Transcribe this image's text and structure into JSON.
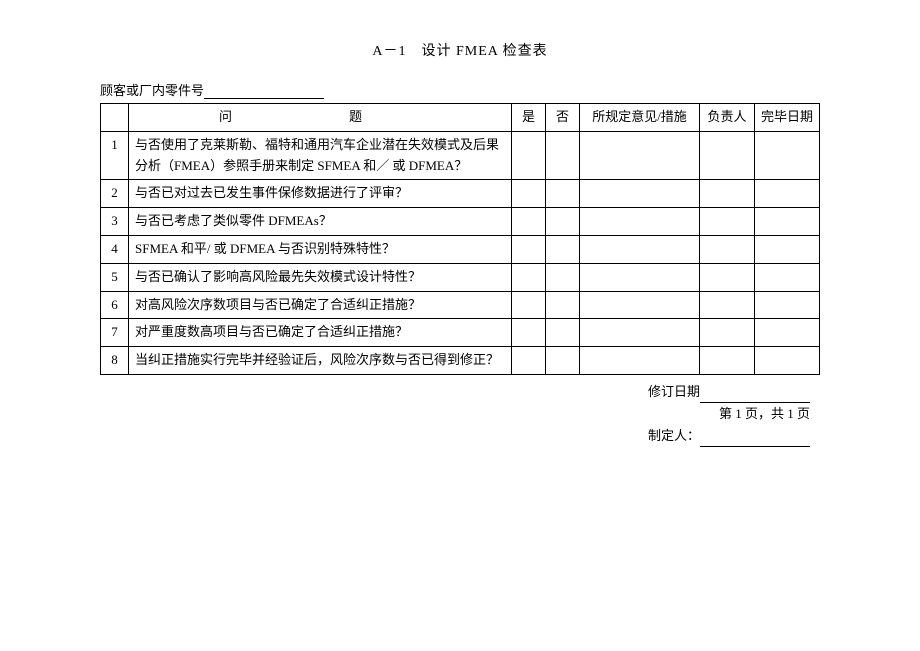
{
  "title": "A－1　设计 FMEA 检查表",
  "subtitle_label": "顾客或厂内零件号",
  "headers": {
    "num": "",
    "question_left": "问",
    "question_right": "题",
    "yes": "是",
    "no": "否",
    "action": "所规定意见/措施",
    "owner": "负责人",
    "date": "完毕日期"
  },
  "rows": [
    {
      "num": "1",
      "question": "与否使用了克莱斯勒、福特和通用汽车企业潜在失效模式及后果分析（FMEA）参照手册来制定 SFMEA 和／ 或 DFMEA？"
    },
    {
      "num": "2",
      "question": "与否已对过去已发生事件保修数据进行了评审？"
    },
    {
      "num": "3",
      "question": "与否已考虑了类似零件 DFMEAs？"
    },
    {
      "num": "4",
      "question": "SFMEA 和平/ 或 DFMEA 与否识别特殊特性？"
    },
    {
      "num": "5",
      "question": "与否已确认了影响高风险最先失效模式设计特性？"
    },
    {
      "num": "6",
      "question": "对高风险次序数项目与否已确定了合适纠正措施？"
    },
    {
      "num": "7",
      "question": "对严重度数高项目与否已确定了合适纠正措施？"
    },
    {
      "num": "8",
      "question": "当纠正措施实行完毕并经验证后，风险次序数与否已得到修正？"
    }
  ],
  "footer": {
    "rev_date_label": "修订日期",
    "page_info": "第 1 页，共 1 页",
    "author_label": "制定人："
  },
  "watermarks": {
    "wm1": "",
    "wm2": ""
  }
}
